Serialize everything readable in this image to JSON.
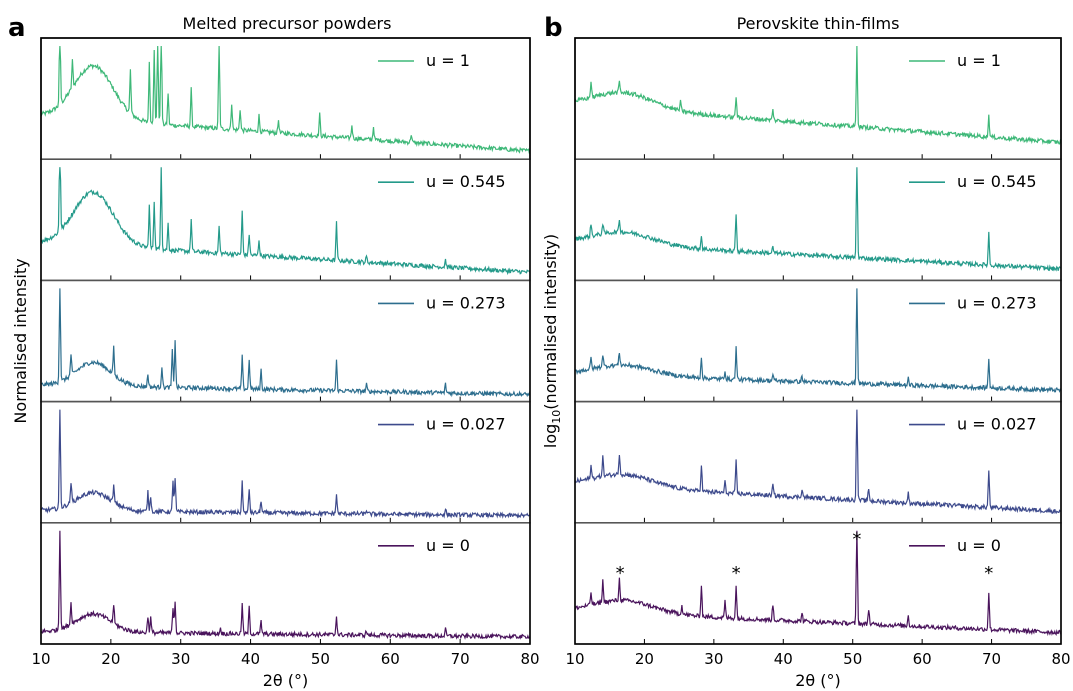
{
  "colors": {
    "u1": "#3eb878",
    "u0545": "#249a8a",
    "u0273": "#2d6e8e",
    "u0027": "#3d4a8c",
    "u0": "#4a145c",
    "frame": "#000000",
    "divider": "#555555"
  },
  "chart_data": [
    {
      "type": "line",
      "panel": "a",
      "title": "Melted precursor powders",
      "xlabel": "2θ (°)",
      "ylabel": "Normalised intensity",
      "xlim": [
        10,
        80
      ],
      "xticks": [
        "10",
        "20",
        "30",
        "40",
        "50",
        "60",
        "70",
        "80"
      ],
      "stacked": true,
      "grid": false,
      "legend_position": "top-right of each subpanel",
      "series": [
        {
          "name": "u = 1",
          "broad_hump": {
            "center": 17.5,
            "height": 0.5,
            "width": 4
          },
          "baseline": {
            "start": 0.35,
            "end": 0.02
          },
          "peaks": [
            [
              12.7,
              0.8
            ],
            [
              14.5,
              0.25
            ],
            [
              22.8,
              0.4
            ],
            [
              25.5,
              0.55
            ],
            [
              26.2,
              0.7
            ],
            [
              26.7,
              0.85
            ],
            [
              27.2,
              0.95
            ],
            [
              28.2,
              0.3
            ],
            [
              31.5,
              0.35
            ],
            [
              35.5,
              0.85
            ],
            [
              37.3,
              0.25
            ],
            [
              38.5,
              0.2
            ],
            [
              41.2,
              0.15
            ],
            [
              44.0,
              0.12
            ],
            [
              49.9,
              0.2
            ],
            [
              54.5,
              0.12
            ],
            [
              57.6,
              0.12
            ],
            [
              63.0,
              0.08
            ]
          ]
        },
        {
          "name": "u = 0.545",
          "broad_hump": {
            "center": 17.5,
            "height": 0.5,
            "width": 4
          },
          "baseline": {
            "start": 0.3,
            "end": 0.02
          },
          "peaks": [
            [
              12.7,
              0.95
            ],
            [
              25.5,
              0.4
            ],
            [
              26.2,
              0.45
            ],
            [
              27.2,
              0.8
            ],
            [
              28.2,
              0.25
            ],
            [
              31.5,
              0.3
            ],
            [
              35.5,
              0.25
            ],
            [
              38.8,
              0.4
            ],
            [
              39.8,
              0.2
            ],
            [
              41.2,
              0.15
            ],
            [
              52.3,
              0.35
            ],
            [
              56.6,
              0.05
            ],
            [
              67.9,
              0.07
            ]
          ]
        },
        {
          "name": "u = 0.273",
          "broad_hump": {
            "center": 17.5,
            "height": 0.22,
            "width": 3.5
          },
          "baseline": {
            "start": 0.1,
            "end": 0.01
          },
          "peaks": [
            [
              12.7,
              0.95
            ],
            [
              14.3,
              0.2
            ],
            [
              20.4,
              0.25
            ],
            [
              25.3,
              0.12
            ],
            [
              27.3,
              0.2
            ],
            [
              28.8,
              0.35
            ],
            [
              29.2,
              0.45
            ],
            [
              38.8,
              0.3
            ],
            [
              39.8,
              0.28
            ],
            [
              41.5,
              0.18
            ],
            [
              52.3,
              0.28
            ],
            [
              56.6,
              0.06
            ],
            [
              67.9,
              0.08
            ]
          ]
        },
        {
          "name": "u = 0.027",
          "broad_hump": {
            "center": 17.5,
            "height": 0.17,
            "width": 3.5
          },
          "baseline": {
            "start": 0.06,
            "end": 0.01
          },
          "peaks": [
            [
              12.7,
              0.95
            ],
            [
              14.3,
              0.2
            ],
            [
              20.4,
              0.15
            ],
            [
              25.3,
              0.18
            ],
            [
              25.7,
              0.15
            ],
            [
              28.9,
              0.28
            ],
            [
              29.2,
              0.32
            ],
            [
              38.8,
              0.28
            ],
            [
              39.8,
              0.22
            ],
            [
              41.5,
              0.12
            ],
            [
              52.3,
              0.18
            ],
            [
              56.6,
              0.04
            ],
            [
              67.9,
              0.06
            ]
          ]
        },
        {
          "name": "u = 0",
          "broad_hump": {
            "center": 17.5,
            "height": 0.17,
            "width": 3.5
          },
          "baseline": {
            "start": 0.06,
            "end": 0.01
          },
          "peaks": [
            [
              12.7,
              0.95
            ],
            [
              14.3,
              0.2
            ],
            [
              20.4,
              0.18
            ],
            [
              25.3,
              0.16
            ],
            [
              25.7,
              0.14
            ],
            [
              28.9,
              0.25
            ],
            [
              29.2,
              0.3
            ],
            [
              35.7,
              0.05
            ],
            [
              38.8,
              0.28
            ],
            [
              39.8,
              0.25
            ],
            [
              41.5,
              0.12
            ],
            [
              52.3,
              0.18
            ],
            [
              56.6,
              0.04
            ],
            [
              67.9,
              0.06
            ]
          ]
        }
      ]
    },
    {
      "type": "line",
      "panel": "b",
      "title": "Perovskite thin-films",
      "xlabel": "2θ (°)",
      "ylabel_prefix": "log",
      "ylabel_subscript": "10",
      "ylabel_rest": "(normalised intensity)",
      "xlim": [
        10,
        80
      ],
      "xticks": [
        "10",
        "20",
        "30",
        "40",
        "50",
        "60",
        "70",
        "80"
      ],
      "stacked": true,
      "grid": false,
      "legend_position": "top-right of each subpanel",
      "annotations": [
        {
          "text": "*",
          "x": 16.5,
          "panel_index": 4
        },
        {
          "text": "*",
          "x": 33.2,
          "panel_index": 4
        },
        {
          "text": "*",
          "x": 50.6,
          "panel_index": 4
        },
        {
          "text": "*",
          "x": 69.6,
          "panel_index": 4
        }
      ],
      "series": [
        {
          "name": "u = 1",
          "broad_hump": {
            "center": 17.0,
            "height": 0.15,
            "width": 6
          },
          "baseline": {
            "start": 0.45,
            "end": 0.1
          },
          "peaks": [
            [
              12.3,
              0.15
            ],
            [
              16.4,
              0.1
            ],
            [
              25.2,
              0.08
            ],
            [
              33.2,
              0.2
            ],
            [
              38.5,
              0.1
            ],
            [
              50.6,
              0.75
            ],
            [
              69.6,
              0.2
            ]
          ]
        },
        {
          "name": "u = 0.545",
          "broad_hump": {
            "center": 17.0,
            "height": 0.12,
            "width": 6
          },
          "baseline": {
            "start": 0.3,
            "end": 0.05
          },
          "peaks": [
            [
              12.3,
              0.12
            ],
            [
              14.0,
              0.1
            ],
            [
              16.4,
              0.12
            ],
            [
              28.2,
              0.12
            ],
            [
              33.2,
              0.35
            ],
            [
              38.5,
              0.06
            ],
            [
              50.6,
              0.95
            ],
            [
              69.6,
              0.3
            ]
          ]
        },
        {
          "name": "u = 0.273",
          "broad_hump": {
            "center": 17.0,
            "height": 0.1,
            "width": 6
          },
          "baseline": {
            "start": 0.2,
            "end": 0.05
          },
          "peaks": [
            [
              12.3,
              0.1
            ],
            [
              14.0,
              0.12
            ],
            [
              16.4,
              0.12
            ],
            [
              28.2,
              0.2
            ],
            [
              31.6,
              0.08
            ],
            [
              33.2,
              0.3
            ],
            [
              38.5,
              0.06
            ],
            [
              42.7,
              0.05
            ],
            [
              50.6,
              0.95
            ],
            [
              58.0,
              0.06
            ],
            [
              69.6,
              0.28
            ]
          ]
        },
        {
          "name": "u = 0.027",
          "broad_hump": {
            "center": 17.0,
            "height": 0.12,
            "width": 6
          },
          "baseline": {
            "start": 0.3,
            "end": 0.05
          },
          "peaks": [
            [
              12.3,
              0.12
            ],
            [
              14.0,
              0.18
            ],
            [
              16.4,
              0.2
            ],
            [
              28.2,
              0.25
            ],
            [
              31.6,
              0.1
            ],
            [
              33.2,
              0.3
            ],
            [
              38.5,
              0.1
            ],
            [
              42.7,
              0.08
            ],
            [
              50.6,
              0.95
            ],
            [
              52.3,
              0.12
            ],
            [
              58.0,
              0.1
            ],
            [
              69.6,
              0.35
            ]
          ]
        },
        {
          "name": "u = 0",
          "broad_hump": {
            "center": 17.0,
            "height": 0.12,
            "width": 6
          },
          "baseline": {
            "start": 0.25,
            "end": 0.05
          },
          "peaks": [
            [
              12.3,
              0.12
            ],
            [
              14.0,
              0.2
            ],
            [
              16.4,
              0.2
            ],
            [
              25.4,
              0.08
            ],
            [
              28.2,
              0.3
            ],
            [
              31.6,
              0.15
            ],
            [
              33.2,
              0.3
            ],
            [
              38.5,
              0.15
            ],
            [
              42.7,
              0.08
            ],
            [
              50.6,
              0.95
            ],
            [
              52.3,
              0.15
            ],
            [
              58.0,
              0.1
            ],
            [
              69.6,
              0.35
            ]
          ]
        }
      ]
    }
  ]
}
